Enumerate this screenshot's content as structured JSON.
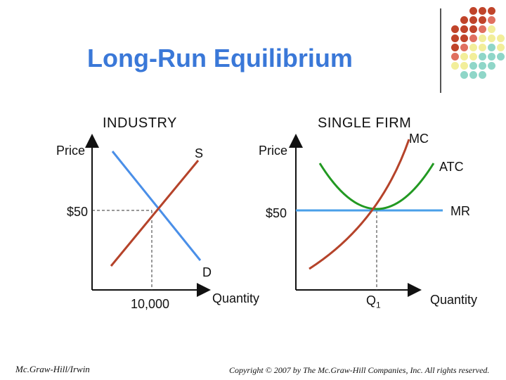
{
  "title": "Long-Run Equilibrium",
  "industry": {
    "heading": "INDUSTRY",
    "y_label": "Price",
    "x_label": "Quantity",
    "price_label": "$50",
    "quantity_label": "10,000",
    "supply_label": "S",
    "demand_label": "D"
  },
  "firm": {
    "heading": "SINGLE FIRM",
    "y_label": "Price",
    "x_label": "Quantity",
    "price_label": "$50",
    "quantity_label": "Q",
    "quantity_subscript": "1",
    "mc_label": "MC",
    "atc_label": "ATC",
    "mr_label": "MR"
  },
  "colors": {
    "title": "#3a78d8",
    "supply": "#b5432a",
    "demand": "#4a8fe8",
    "mc": "#b5432a",
    "atc": "#229922",
    "mr": "#4a9fe8"
  },
  "footer": {
    "left": "Mc.Graw-Hill/Irwin",
    "right": "Copyright © 2007 by The Mc.Graw-Hill Companies, Inc. All rights reserved."
  },
  "decoration": {
    "dot_colors": [
      "#c0442a",
      "#e07060",
      "#f2ee9a",
      "#8fd6c8"
    ]
  }
}
